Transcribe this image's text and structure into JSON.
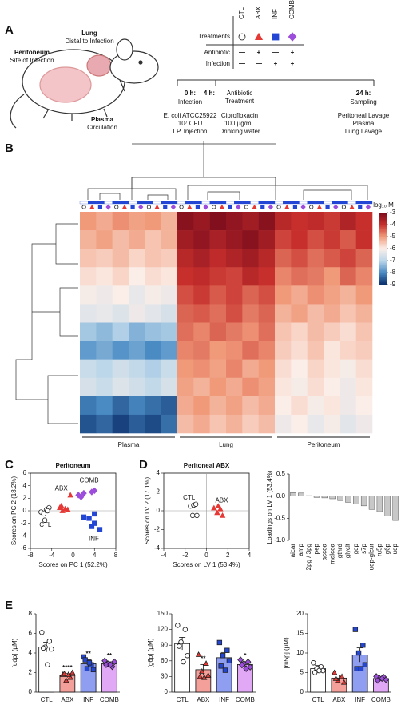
{
  "schematic": {
    "panel": "A",
    "labels": [
      {
        "title": "Peritoneum",
        "subtitle": "Site of Infection"
      },
      {
        "title": "Lung",
        "subtitle": "Distal to Infection"
      },
      {
        "title": "Plasma",
        "subtitle": "Circulation"
      }
    ],
    "treatments": {
      "title": "Treatments",
      "groups": [
        "CTL",
        "ABX",
        "INF",
        "COMB"
      ],
      "markers": [
        "circle",
        "triangle",
        "square",
        "diamond"
      ],
      "colors": [
        "#222222",
        "#e53935",
        "#2346d4",
        "#9c4ddb"
      ],
      "rows": [
        {
          "label": "Antibiotic",
          "entries": [
            "—",
            "+",
            "—",
            "+"
          ]
        },
        {
          "label": "Infection",
          "entries": [
            "—",
            "—",
            "+",
            "+"
          ]
        }
      ]
    },
    "timeline": [
      {
        "time": "0 h:",
        "event": [
          "Infection"
        ],
        "details": [
          "E. coli ATCC25922",
          "10⁷ CFU",
          "I.P. Injection"
        ]
      },
      {
        "time": "4 h:",
        "event": [
          "Antibiotic",
          "Treatment"
        ],
        "details": [
          "Ciprofloxacin",
          "100 µg/mL",
          "Drinking water"
        ]
      },
      {
        "time": "24 h:",
        "event": [
          "Sampling"
        ],
        "details": [
          "Peritoneal Lavage",
          "Plasma",
          "Lung Lavage"
        ]
      }
    ]
  },
  "chart_data": [
    {
      "type": "heatmap",
      "panel": "B",
      "groups": [
        "Plasma",
        "Lung",
        "Peritoneum"
      ],
      "colorbar_label": "log₁₀ M",
      "zlim": [
        -3,
        -9
      ],
      "zticks": [
        -3,
        -4,
        -5,
        -6,
        -7,
        -8,
        -9
      ],
      "colormap": [
        "#7a0b1c",
        "#c62f2c",
        "#f09a7a",
        "#fbeee8",
        "#bcd7ea",
        "#4a8bc4",
        "#0b2f6b"
      ],
      "values": [
        [
          -5,
          -5.2,
          -4.9,
          -5.1,
          -5,
          -5.3,
          -3.2,
          -3.4,
          -3.1,
          -3.3,
          -3.5,
          -3.2,
          -3.8,
          -4,
          -3.9,
          -4.1,
          -3.7,
          -4
        ],
        [
          -5.3,
          -5.1,
          -5.4,
          -5.2,
          -5.5,
          -5.3,
          -3.5,
          -3.3,
          -3.6,
          -3.4,
          -3.2,
          -3.5,
          -4.2,
          -4,
          -4.3,
          -4.1,
          -4.4,
          -4
        ],
        [
          -5.5,
          -5.6,
          -5.4,
          -5.7,
          -5.5,
          -5.6,
          -3.8,
          -3.6,
          -3.9,
          -3.7,
          -3.5,
          -3.8,
          -4.5,
          -4.3,
          -4.6,
          -4.4,
          -4.2,
          -4.5
        ],
        [
          -5.8,
          -5.9,
          -5.7,
          -6,
          -5.8,
          -5.9,
          -4,
          -3.9,
          -4.1,
          -4.2,
          -3.8,
          -4,
          -4.8,
          -4.6,
          -4.7,
          -5,
          -4.5,
          -4.8
        ],
        [
          -6.1,
          -6.2,
          -6,
          -6.3,
          -6.1,
          -6.2,
          -4.3,
          -4.1,
          -4.4,
          -4.2,
          -4.5,
          -4.3,
          -5,
          -5.2,
          -4.9,
          -5.1,
          -5.3,
          -5
        ],
        [
          -6.4,
          -6.3,
          -6.5,
          -6.2,
          -6.4,
          -6.6,
          -4.5,
          -4.4,
          -4.6,
          -4.3,
          -4.7,
          -4.5,
          -5.3,
          -5.1,
          -5.4,
          -5.2,
          -5.5,
          -5.3
        ],
        [
          -7.2,
          -7.4,
          -7.1,
          -7.5,
          -7.3,
          -7.2,
          -4.6,
          -4.8,
          -4.5,
          -4.7,
          -4.9,
          -4.6,
          -5.5,
          -5.7,
          -5.4,
          -5.6,
          -5.8,
          -5.5
        ],
        [
          -7.8,
          -7.6,
          -7.9,
          -7.7,
          -8,
          -7.8,
          -4.8,
          -4.7,
          -5,
          -4.9,
          -4.6,
          -4.8,
          -5.6,
          -5.8,
          -5.5,
          -5.9,
          -5.7,
          -5.6
        ],
        [
          -6.8,
          -7,
          -6.7,
          -6.9,
          -7.1,
          -6.8,
          -5,
          -4.9,
          -5.1,
          -4.8,
          -5.2,
          -5,
          -5.8,
          -6,
          -5.7,
          -5.9,
          -6.1,
          -5.8
        ],
        [
          -6.6,
          -6.8,
          -6.5,
          -6.7,
          -6.9,
          -6.6,
          -5.1,
          -5.3,
          -5,
          -5.2,
          -4.9,
          -5.1,
          -5.9,
          -6.1,
          -5.8,
          -6,
          -6.2,
          -5.9
        ],
        [
          -8.2,
          -8,
          -8.4,
          -8.1,
          -8.3,
          -8.5,
          -5.2,
          -5,
          -5.3,
          -5.1,
          -5.4,
          -5.2,
          -6,
          -5.8,
          -6.1,
          -5.9,
          -6.2,
          -6
        ],
        [
          -8.6,
          -8.4,
          -8.8,
          -8.5,
          -8.7,
          -8.3,
          -5.4,
          -5.2,
          -5.5,
          -5.3,
          -5.6,
          -5.4,
          -6.2,
          -6,
          -6.3,
          -6.1,
          -6.4,
          -6.2
        ]
      ]
    },
    {
      "type": "scatter",
      "panel": "C",
      "title": "Peritoneum",
      "x_label": "Scores on PC 1 (52.2%)",
      "y_label": "Scores on PC 2 (18.2%)",
      "xlim": [
        -8,
        8
      ],
      "xticks": [
        -8,
        -4,
        0,
        4,
        8
      ],
      "ylim": [
        -6,
        6
      ],
      "yticks": [
        -6,
        -4,
        -2,
        0,
        2,
        4,
        6
      ],
      "series": [
        {
          "name": "CTL",
          "marker": "circle",
          "color": "#222222",
          "filled": false,
          "x": [
            -6,
            -5.5,
            -5,
            -4.5,
            -5.3,
            -4.8
          ],
          "y": [
            -0.2,
            -0.5,
            0.2,
            0.5,
            -1.5,
            0
          ]
        },
        {
          "name": "ABX",
          "marker": "triangle",
          "color": "#e53935",
          "filled": true,
          "x": [
            -2.5,
            -2,
            -1.5,
            -1,
            -2.2,
            -0.5
          ],
          "y": [
            0.5,
            0,
            0.3,
            0.2,
            0.8,
            2.5
          ]
        },
        {
          "name": "COMB",
          "marker": "diamond",
          "color": "#9c4ddb",
          "filled": true,
          "x": [
            1,
            2,
            3.5,
            4,
            1.5
          ],
          "y": [
            2.5,
            2.8,
            3,
            3.2,
            2.2
          ]
        },
        {
          "name": "INF",
          "marker": "square",
          "color": "#2346d4",
          "filled": true,
          "x": [
            2,
            3,
            4,
            4,
            5,
            3.5
          ],
          "y": [
            -1,
            -1.2,
            -0.5,
            -2,
            -3,
            -2.5
          ]
        }
      ]
    },
    {
      "type": "scatter",
      "panel": "D",
      "title": "Peritoneal ABX",
      "x_label": "Scores on LV 1 (53.4%)",
      "y_label": "Scores on LV 2 (17.1%)",
      "xlim": [
        -4,
        4
      ],
      "xticks": [
        -4,
        -2,
        0,
        2,
        4
      ],
      "ylim": [
        -4,
        4
      ],
      "yticks": [
        -4,
        -2,
        0,
        2,
        4
      ],
      "series": [
        {
          "name": "CTL",
          "marker": "circle",
          "color": "#222222",
          "filled": false,
          "x": [
            -1.5,
            -1.2,
            -1,
            -1.3,
            -0.9
          ],
          "y": [
            0.5,
            0.6,
            0.7,
            -0.5,
            -0.5
          ]
        },
        {
          "name": "ABX",
          "marker": "triangle",
          "color": "#e53935",
          "filled": true,
          "x": [
            0.7,
            1,
            1.3,
            1.5,
            1.1
          ],
          "y": [
            0.3,
            -0.2,
            0.2,
            -0.5,
            0.5
          ]
        }
      ]
    },
    {
      "type": "bar",
      "y_label": "Loadings on LV 1 (53.4%)",
      "color": "#c8c8c8",
      "categories": [
        "aicar",
        "amp",
        "2pg / 3pg",
        "pep",
        "accoa",
        "malcoa",
        "gthrd",
        "glyclt",
        "gdp",
        "s7p",
        "udp-glcur",
        "ru5p",
        "g6p",
        "udp"
      ],
      "values": [
        0.08,
        0.07,
        0.01,
        -0.03,
        -0.04,
        -0.06,
        -0.1,
        -0.14,
        -0.18,
        -0.22,
        -0.3,
        -0.35,
        -0.45,
        -0.55
      ],
      "ylim": [
        -1,
        0.5
      ],
      "yticks": [
        0.5,
        {
          "value": 0,
          "label": "0.0"
        },
        -0.5,
        {
          "value": -1,
          "label": "-1.0"
        }
      ]
    },
    {
      "type": "errorbar",
      "panel": "E",
      "y_label": "[udp] (µM)",
      "categories": [
        "CTL",
        "ABX",
        "INF",
        "COMB"
      ],
      "values": [
        4.6,
        1.7,
        2.9,
        2.9
      ],
      "errors": [
        0.5,
        0.2,
        0.4,
        0.2
      ],
      "points": [
        [
          6.1,
          5.2,
          4.6,
          4.4,
          4.5,
          2.8
        ],
        [
          1.8,
          1.5,
          1.2,
          2.0,
          1.9,
          1.8
        ],
        [
          3.6,
          2.8,
          2.4,
          2.3,
          3.3,
          3.0
        ],
        [
          3.2,
          2.6,
          2.9,
          3.1,
          2.8,
          2.8
        ]
      ],
      "significance": [
        null,
        "****",
        "**",
        "**"
      ],
      "colors": [
        "#ffffff",
        "#f4a09a",
        "#8f9ef0",
        "#e1a8f5"
      ],
      "point_colors": [
        "#ffffff",
        "#e53935",
        "#2346d4",
        "#9c4ddb"
      ],
      "markers": [
        "circle",
        "triangle",
        "square",
        "diamond"
      ],
      "ylim": [
        0,
        8
      ],
      "yticks": [
        0,
        2,
        4,
        6,
        8
      ]
    },
    {
      "type": "errorbar",
      "y_label": "[g6p] (µM)",
      "categories": [
        "CTL",
        "ABX",
        "INF",
        "COMB"
      ],
      "values": [
        93,
        43,
        66,
        53
      ],
      "errors": [
        12,
        10,
        10,
        5
      ],
      "points": [
        [
          128,
          120,
          96,
          70,
          88,
          58
        ],
        [
          72,
          55,
          40,
          32,
          30,
          28
        ],
        [
          95,
          80,
          70,
          60,
          50,
          42
        ],
        [
          62,
          58,
          55,
          48,
          52,
          45
        ]
      ],
      "significance": [
        null,
        "**",
        null,
        "*"
      ],
      "colors": [
        "#ffffff",
        "#f4a09a",
        "#8f9ef0",
        "#e1a8f5"
      ],
      "point_colors": [
        "#ffffff",
        "#e53935",
        "#2346d4",
        "#9c4ddb"
      ],
      "markers": [
        "circle",
        "triangle",
        "square",
        "diamond"
      ],
      "ylim": [
        0,
        150
      ],
      "yticks": [
        0,
        30,
        60,
        90,
        120,
        150
      ]
    },
    {
      "type": "errorbar",
      "y_label": "[ru5p] (µM)",
      "categories": [
        "CTL",
        "ABX",
        "INF",
        "COMB"
      ],
      "values": [
        6,
        3.6,
        9.5,
        3.5
      ],
      "errors": [
        0.8,
        0.8,
        1.8,
        0.4
      ],
      "points": [
        [
          7.5,
          6.5,
          6,
          5.5,
          5,
          5.5
        ],
        [
          5,
          4,
          3,
          2.5,
          3.5
        ],
        [
          16,
          12,
          10,
          7,
          6,
          6
        ],
        [
          4,
          3.8,
          3.5,
          3.2,
          3,
          3.5
        ]
      ],
      "colors": [
        "#ffffff",
        "#f4a09a",
        "#8f9ef0",
        "#e1a8f5"
      ],
      "point_colors": [
        "#ffffff",
        "#e53935",
        "#2346d4",
        "#9c4ddb"
      ],
      "markers": [
        "circle",
        "triangle",
        "square",
        "diamond"
      ],
      "ylim": [
        0,
        20
      ],
      "yticks": [
        0,
        5,
        10,
        15,
        20
      ]
    }
  ]
}
